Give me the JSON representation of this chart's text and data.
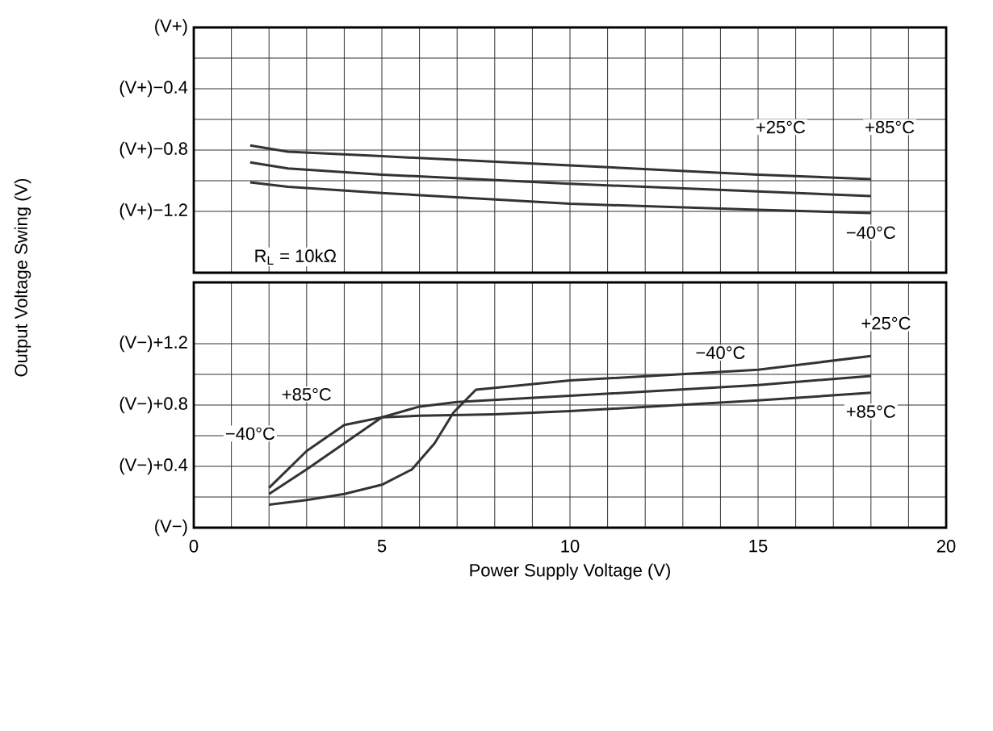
{
  "chart_data": [
    {
      "type": "line",
      "ylabel": "Output Voltage Swing (V)",
      "xlim": [
        0,
        20
      ],
      "ylim": [
        -1.6,
        0
      ],
      "xticks": [
        0,
        5,
        10,
        15,
        20
      ],
      "yticks": [
        {
          "value": 0,
          "label": "(V+)"
        },
        {
          "value": -0.4,
          "label": "(V+)−0.4"
        },
        {
          "value": -0.8,
          "label": "(V+)−0.8"
        },
        {
          "value": -1.2,
          "label": "(V+)−1.2"
        }
      ],
      "tick_labels": "y",
      "grid": true,
      "line_style": "solid",
      "series": [
        {
          "color": "#333333",
          "x": [
            1.5,
            2.5,
            5,
            10,
            15,
            18
          ],
          "values": [
            -0.77,
            -0.81,
            -0.84,
            -0.9,
            -0.96,
            -0.99
          ]
        },
        {
          "color": "#333333",
          "x": [
            1.5,
            2.5,
            5,
            10,
            15,
            18
          ],
          "values": [
            -0.88,
            -0.92,
            -0.96,
            -1.02,
            -1.07,
            -1.1
          ]
        },
        {
          "color": "#333333",
          "x": [
            1.5,
            2.5,
            5,
            10,
            15,
            18
          ],
          "values": [
            -1.01,
            -1.04,
            -1.08,
            -1.15,
            -1.19,
            -1.21
          ]
        }
      ],
      "annotations": [
        "+25°C",
        "+85°C",
        "−40°C",
        "R$_{L}$ = 10kΩ"
      ]
    },
    {
      "type": "line",
      "xlabel": "Power Supply Voltage (V)",
      "xlim": [
        0,
        20
      ],
      "ylim": [
        0,
        1.6
      ],
      "xticks": [
        0,
        5,
        10,
        15,
        20
      ],
      "yticks": [
        {
          "value": 0,
          "label": "(V−)"
        },
        {
          "value": 0.4,
          "label": "(V−)+0.4"
        },
        {
          "value": 0.8,
          "label": "(V−)+0.8"
        },
        {
          "value": 1.2,
          "label": "(V−)+1.2"
        }
      ],
      "grid": true,
      "line_style": "solid",
      "series": [
        {
          "color": "#333333",
          "x": [
            2,
            3,
            4,
            5,
            6,
            7,
            10,
            15,
            18
          ],
          "values": [
            0.26,
            0.5,
            0.67,
            0.72,
            0.79,
            0.82,
            0.86,
            0.93,
            0.99
          ]
        },
        {
          "color": "#333333",
          "x": [
            2,
            3,
            4,
            5,
            6,
            8,
            10,
            15,
            18
          ],
          "values": [
            0.22,
            0.38,
            0.55,
            0.72,
            0.73,
            0.74,
            0.76,
            0.83,
            0.88
          ]
        },
        {
          "color": "#333333",
          "x": [
            2,
            3,
            4,
            5,
            5.8,
            6.4,
            6.9,
            7.5,
            10,
            15,
            18
          ],
          "values": [
            0.15,
            0.18,
            0.22,
            0.28,
            0.38,
            0.55,
            0.75,
            0.9,
            0.96,
            1.03,
            1.12
          ]
        }
      ],
      "annotations": [
        "+25°C",
        "−40°C",
        "+85°C",
        "−40°C",
        "+85°C"
      ]
    }
  ]
}
